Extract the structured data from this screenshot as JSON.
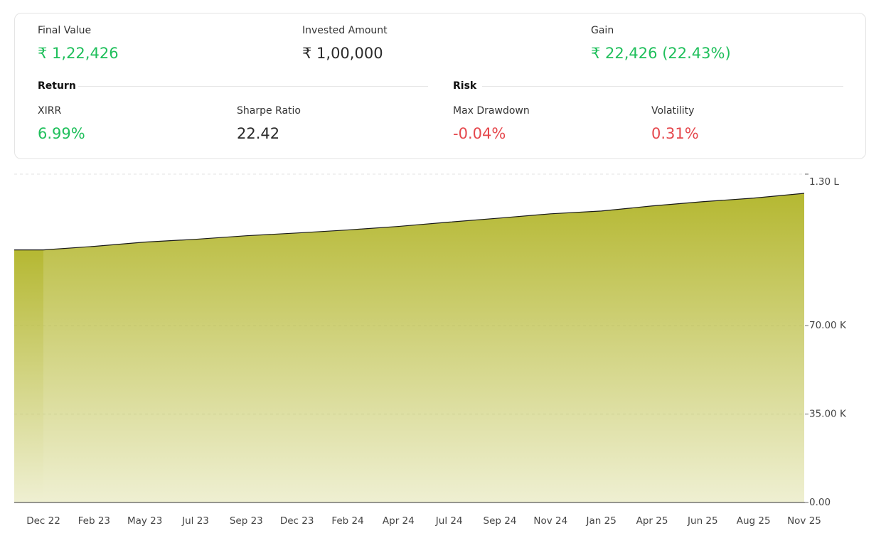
{
  "summary": {
    "final_value": {
      "label": "Final Value",
      "value": "₹ 1,22,426"
    },
    "invested_amount": {
      "label": "Invested Amount",
      "value": "₹ 1,00,000"
    },
    "gain": {
      "label": "Gain",
      "value": "₹ 22,426 (22.43%)"
    }
  },
  "return": {
    "title": "Return",
    "xirr": {
      "label": "XIRR",
      "value": "6.99%"
    },
    "sharpe_ratio": {
      "label": "Sharpe Ratio",
      "value": "22.42"
    }
  },
  "risk": {
    "title": "Risk",
    "max_drawdown": {
      "label": "Max Drawdown",
      "value": "-0.04%"
    },
    "volatility": {
      "label": "Volatility",
      "value": "0.31%"
    }
  },
  "chart_data": {
    "type": "area",
    "categories": [
      "Dec 22",
      "Feb 23",
      "May 23",
      "Jul 23",
      "Sep 23",
      "Dec 23",
      "Feb 24",
      "Apr 24",
      "Jul 24",
      "Sep 24",
      "Nov 24",
      "Jan 25",
      "Apr 25",
      "Jun 25",
      "Aug 25",
      "Nov 25"
    ],
    "values": [
      100000,
      101400,
      103100,
      104200,
      105600,
      106700,
      107900,
      109300,
      111000,
      112600,
      114300,
      115400,
      117400,
      119100,
      120500,
      122400
    ],
    "color": "#b5b832",
    "line_color": "#1a1a1a",
    "ylim": [
      0,
      130000
    ],
    "yticks": [
      {
        "value": 0,
        "label": "0.00"
      },
      {
        "value": 35000,
        "label": "35.00 K"
      },
      {
        "value": 70000,
        "label": "70.00 K"
      },
      {
        "value": 130000,
        "label": "1.30 L"
      }
    ],
    "grid": true
  }
}
